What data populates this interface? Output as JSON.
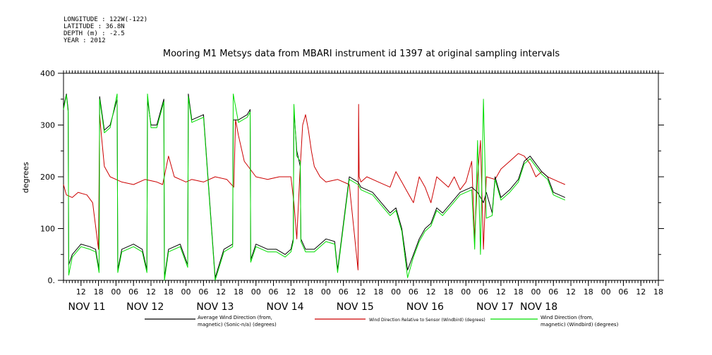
{
  "meta": {
    "longitude": "LONGITUDE : 122W(-122)",
    "latitude": "LATITUDE : 36.8N",
    "depth": "DEPTH (m) : -2.5",
    "year": "YEAR : 2012"
  },
  "colors": {
    "black_series": "#000000",
    "red_series": "#cc0000",
    "green_series": "#00dd00"
  },
  "chart_data": {
    "type": "line",
    "title": "Mooring M1 Metsys data from MBARI instrument id 1397 at original sampling intervals",
    "ylabel": "degrees",
    "xlabel": "",
    "ylim": [
      0,
      400
    ],
    "yticks": [
      "0.",
      "100",
      "200",
      "300",
      "400"
    ],
    "xlim_hours": [
      0,
      204
    ],
    "x_hour_ticks": [
      {
        "h": 6,
        "label": "12"
      },
      {
        "h": 12,
        "label": "18"
      },
      {
        "h": 18,
        "label": "00"
      },
      {
        "h": 24,
        "label": "06"
      },
      {
        "h": 30,
        "label": "12"
      },
      {
        "h": 36,
        "label": "18"
      },
      {
        "h": 42,
        "label": "00"
      },
      {
        "h": 48,
        "label": "06"
      },
      {
        "h": 54,
        "label": "12"
      },
      {
        "h": 60,
        "label": "18"
      },
      {
        "h": 66,
        "label": "00"
      },
      {
        "h": 72,
        "label": "06"
      },
      {
        "h": 78,
        "label": "12"
      },
      {
        "h": 84,
        "label": "18"
      },
      {
        "h": 90,
        "label": "00"
      },
      {
        "h": 96,
        "label": "06"
      },
      {
        "h": 102,
        "label": "12"
      },
      {
        "h": 108,
        "label": "18"
      },
      {
        "h": 114,
        "label": "00"
      },
      {
        "h": 120,
        "label": "06"
      },
      {
        "h": 126,
        "label": "12"
      },
      {
        "h": 132,
        "label": "18"
      },
      {
        "h": 138,
        "label": "00"
      },
      {
        "h": 144,
        "label": "06"
      },
      {
        "h": 150,
        "label": "12"
      },
      {
        "h": 156,
        "label": "18"
      },
      {
        "h": 162,
        "label": "00"
      },
      {
        "h": 168,
        "label": "06"
      },
      {
        "h": 174,
        "label": "12"
      },
      {
        "h": 180,
        "label": "18"
      },
      {
        "h": 186,
        "label": "00"
      },
      {
        "h": 192,
        "label": "06"
      },
      {
        "h": 198,
        "label": "12"
      },
      {
        "h": 204,
        "label": "18"
      }
    ],
    "day_labels": [
      {
        "h": 8,
        "label": "NOV 11"
      },
      {
        "h": 28,
        "label": "NOV 12"
      },
      {
        "h": 52,
        "label": "NOV 13"
      },
      {
        "h": 76,
        "label": "NOV 14"
      },
      {
        "h": 100,
        "label": "NOV 15"
      },
      {
        "h": 124,
        "label": "NOV 16"
      },
      {
        "h": 148,
        "label": "NOV 17"
      },
      {
        "h": 163,
        "label": "NOV 18"
      }
    ],
    "series": [
      {
        "name": "Average Wind Direction (from, magnetic) (Sonic-n/a) (degrees)",
        "color": "#000000",
        "x": [
          0,
          1,
          1.6,
          1.8,
          3,
          6,
          9,
          11,
          12.2,
          12.4,
          14,
          16,
          18.4,
          18.6,
          20,
          24,
          27,
          28.6,
          28.8,
          30,
          32,
          34.4,
          34.6,
          36,
          40,
          42.6,
          42.8,
          44,
          48,
          52,
          55,
          58,
          58.2,
          60,
          63,
          64,
          64.2,
          66,
          70,
          73,
          76,
          78,
          78.8,
          79,
          80,
          81.2,
          81.4,
          83,
          86,
          88,
          90,
          93,
          94,
          98,
          101,
          102,
          106,
          109,
          112,
          114,
          116,
          118,
          120,
          122,
          124,
          126,
          128,
          130,
          133,
          136,
          140,
          142,
          144,
          145,
          147,
          148,
          150,
          153,
          156,
          158,
          160,
          162,
          164,
          166,
          168,
          170,
          172
        ],
        "y": [
          335,
          360,
          330,
          30,
          50,
          70,
          65,
          60,
          20,
          355,
          290,
          300,
          350,
          20,
          60,
          70,
          60,
          20,
          350,
          300,
          300,
          350,
          5,
          60,
          70,
          30,
          360,
          310,
          320,
          5,
          60,
          70,
          310,
          310,
          320,
          330,
          40,
          70,
          60,
          60,
          50,
          60,
          80,
          330,
          250,
          220,
          80,
          60,
          60,
          70,
          80,
          75,
          20,
          200,
          190,
          180,
          170,
          150,
          130,
          140,
          100,
          20,
          50,
          80,
          100,
          110,
          140,
          130,
          150,
          170,
          180,
          170,
          150,
          170,
          130,
          200,
          160,
          175,
          195,
          230,
          240,
          225,
          210,
          200,
          170,
          165,
          160
        ]
      },
      {
        "name": "Wind Direction Relative to Sensor (Windbird) (degrees)",
        "color": "#cc0000",
        "x": [
          0,
          1,
          3,
          5,
          8,
          10,
          12,
          12.4,
          13,
          14,
          16,
          18,
          20,
          24,
          28,
          32,
          34,
          36,
          38,
          42,
          44,
          48,
          52,
          56,
          58.4,
          59,
          60,
          62,
          64,
          66,
          70,
          74,
          78,
          79,
          80,
          81,
          82,
          83,
          84,
          85,
          86,
          88,
          90,
          94,
          98,
          101,
          101.2,
          101.4,
          102,
          104,
          108,
          112,
          114,
          116,
          118,
          120,
          122,
          124,
          126,
          128,
          130,
          132,
          134,
          136,
          138,
          140,
          141,
          142,
          143,
          144,
          145,
          148,
          150,
          153,
          156,
          158,
          160,
          162,
          164,
          166,
          168,
          170,
          172
        ],
        "y": [
          185,
          165,
          160,
          170,
          165,
          150,
          60,
          320,
          280,
          220,
          200,
          195,
          190,
          185,
          195,
          190,
          185,
          240,
          200,
          190,
          195,
          190,
          200,
          195,
          180,
          310,
          280,
          230,
          215,
          200,
          195,
          200,
          200,
          150,
          80,
          200,
          300,
          320,
          290,
          250,
          220,
          200,
          190,
          195,
          185,
          20,
          340,
          200,
          190,
          200,
          190,
          180,
          210,
          190,
          170,
          150,
          200,
          180,
          150,
          200,
          190,
          180,
          200,
          175,
          190,
          230,
          80,
          200,
          270,
          60,
          200,
          195,
          215,
          230,
          245,
          240,
          225,
          200,
          210,
          200,
          195,
          190,
          185
        ]
      },
      {
        "name": "Wind Direction (from, magnetic) (Windbird) (degrees)",
        "color": "#00dd00",
        "x": [
          0,
          1,
          1.6,
          1.8,
          3,
          6,
          9,
          11,
          12.2,
          12.4,
          14,
          16,
          18.4,
          18.6,
          20,
          24,
          27,
          28.6,
          28.8,
          30,
          32,
          34.4,
          34.6,
          36,
          40,
          42.6,
          42.8,
          44,
          48,
          52,
          55,
          58,
          58.2,
          60,
          63,
          64,
          64.2,
          66,
          70,
          73,
          76,
          78,
          78.8,
          79,
          80,
          81.2,
          81.4,
          83,
          86,
          88,
          90,
          93,
          94,
          98,
          101,
          102,
          106,
          109,
          112,
          114,
          116,
          118,
          120,
          122,
          124,
          126,
          128,
          130,
          133,
          136,
          140,
          141,
          142,
          143,
          144,
          145,
          147,
          148,
          150,
          153,
          156,
          158,
          160,
          162,
          164,
          166,
          168,
          170,
          172
        ],
        "y": [
          330,
          358,
          325,
          10,
          45,
          65,
          60,
          55,
          15,
          350,
          285,
          295,
          360,
          15,
          55,
          65,
          55,
          15,
          360,
          295,
          295,
          345,
          0,
          55,
          65,
          25,
          355,
          305,
          315,
          0,
          55,
          65,
          360,
          305,
          315,
          325,
          35,
          65,
          55,
          55,
          45,
          55,
          75,
          340,
          240,
          230,
          75,
          55,
          55,
          65,
          75,
          70,
          15,
          195,
          185,
          175,
          165,
          145,
          125,
          135,
          95,
          5,
          45,
          75,
          95,
          105,
          135,
          125,
          145,
          165,
          175,
          60,
          270,
          50,
          350,
          120,
          125,
          195,
          155,
          170,
          190,
          225,
          235,
          220,
          205,
          195,
          165,
          160,
          155
        ]
      }
    ],
    "legend": [
      {
        "line1": "Average Wind Direction (from,",
        "line2": "magnetic) (Sonic-n/a) (degrees)"
      },
      {
        "line1": "Wind Direction Relative to Sensor (Windbird) (degrees)",
        "line2": ""
      },
      {
        "line1": "Wind Direction (from,",
        "line2": "magnetic) (Windbird) (degrees)"
      }
    ]
  }
}
